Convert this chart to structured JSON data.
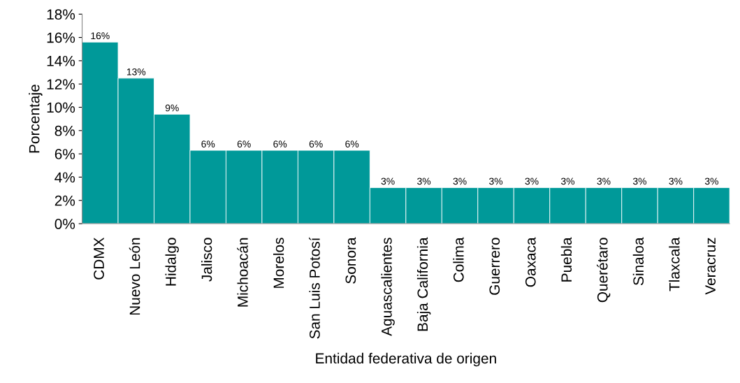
{
  "chart_data": {
    "type": "bar",
    "xlabel": "Entidad federativa de origen",
    "ylabel": "Porcentaje",
    "categories": [
      "CDMX",
      "Nuevo León",
      "Hidalgo",
      "Jalisco",
      "Michoacán",
      "Morelos",
      "San Luis Potosí",
      "Sonora",
      "Aguascalientes",
      "Baja California",
      "Colima",
      "Guerrero",
      "Oaxaca",
      "Puebla",
      "Querétaro",
      "Sinaloa",
      "Tlaxcala",
      "Veracruz"
    ],
    "values": [
      15.6,
      12.5,
      9.4,
      6.3,
      6.3,
      6.3,
      6.3,
      6.3,
      3.1,
      3.1,
      3.1,
      3.1,
      3.1,
      3.1,
      3.1,
      3.1,
      3.1,
      3.1
    ],
    "value_labels": [
      "16%",
      "13%",
      "9%",
      "6%",
      "6%",
      "6%",
      "6%",
      "6%",
      "3%",
      "3%",
      "3%",
      "3%",
      "3%",
      "3%",
      "3%",
      "3%",
      "3%",
      "3%"
    ],
    "color": "#009999",
    "ylim": [
      0,
      18
    ],
    "yticks": [
      {
        "value": 0,
        "label": "0%"
      },
      {
        "value": 2,
        "label": "2%"
      },
      {
        "value": 4,
        "label": "4%"
      },
      {
        "value": 6,
        "label": "6%"
      },
      {
        "value": 8,
        "label": "8%"
      },
      {
        "value": 10,
        "label": "10%"
      },
      {
        "value": 12,
        "label": "12%"
      },
      {
        "value": 14,
        "label": "14%"
      },
      {
        "value": 16,
        "label": "16%"
      },
      {
        "value": 18,
        "label": "18%"
      }
    ],
    "grid": false,
    "legend": false
  }
}
